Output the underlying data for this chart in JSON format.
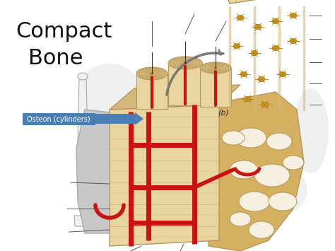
{
  "title_line1": "Compact",
  "title_line2": "Bone",
  "title_fontsize": 22,
  "title_color": "#111111",
  "background_color": "#ffffff",
  "label_osteon": "Osteon (cylinders)",
  "label_b": "(b)",
  "label_osteon_box_color": "#4a7fb5",
  "label_osteon_text_color": "#ffffff",
  "bone_color": "#e8d5a0",
  "bone_mid": "#d4b87a",
  "bone_dark": "#b8955a",
  "red_vessel": "#cc1111",
  "gray_bone": "#c0c0c0",
  "gray_bone_edge": "#999999",
  "spongy_color": "#d4b060",
  "inset_bg": "#e8d5a0",
  "arrow_gray": "#888888",
  "annot_line": "#555555"
}
